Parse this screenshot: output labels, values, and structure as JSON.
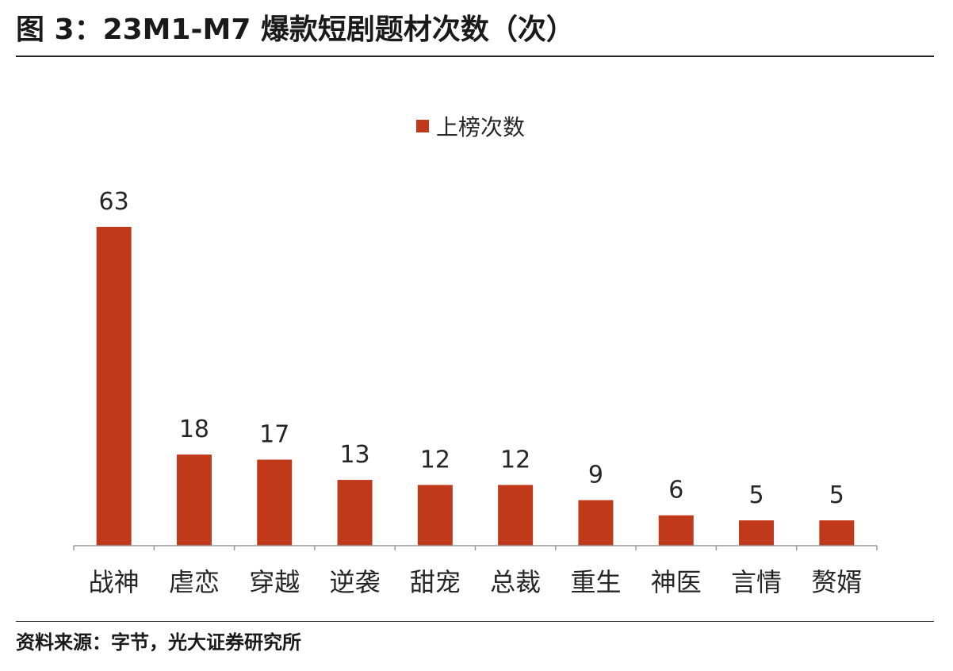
{
  "figure": {
    "title": "图 3：23M1-M7 爆款短剧题材次数（次）",
    "source": "资料来源：字节，光大证券研究所"
  },
  "chart_data": {
    "type": "bar",
    "categories": [
      "战神",
      "虐恋",
      "穿越",
      "逆袭",
      "甜宠",
      "总裁",
      "重生",
      "神医",
      "言情",
      "赘婿"
    ],
    "series": [
      {
        "name": "上榜次数",
        "values": [
          63,
          18,
          17,
          13,
          12,
          12,
          9,
          6,
          5,
          5
        ],
        "color": "#c0391b"
      }
    ],
    "ylim": [
      0,
      70
    ],
    "legend": "top-center",
    "grid": false,
    "data_labels": true
  }
}
